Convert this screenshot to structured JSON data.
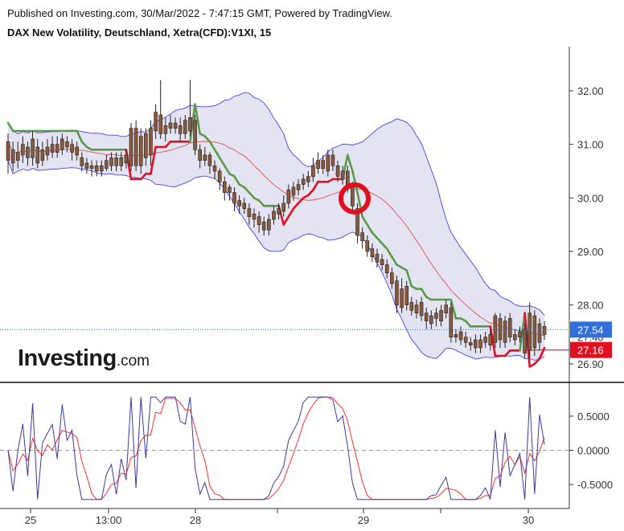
{
  "header": {
    "published": "Published on Investing.com, 30/Mar/2022 - 7:47:15 GMT, Powered by TradingView.",
    "symbol": "DAX New Volatility, Deutschland, Xetra(CFD):V1XI, 15"
  },
  "logo": {
    "name": "Investing",
    "suffix": ".com"
  },
  "colors": {
    "candle_body": "#8b5a3c",
    "candle_wick": "#222222",
    "band_fill": "#e1e1f0",
    "band_line": "#4444ee",
    "mid_line": "#e05050",
    "supertrend_up": "#5a9a4a",
    "supertrend_down": "#e01020",
    "osc_fast": "#3a3aa0",
    "osc_slow": "#ff3030",
    "price_tag_blue": "#2f6fdc",
    "price_tag_red": "#e01020"
  },
  "chart_data": [
    {
      "type": "candlestick",
      "title": "DAX New Volatility, Deutschland, Xetra(CFD):V1XI, 15",
      "x_tick_labels": [
        "25",
        "13:00",
        "28",
        "29",
        "30"
      ],
      "y_tick_labels": [
        "32.00",
        "31.00",
        "30.00",
        "29.00",
        "28.00",
        "26.90"
      ],
      "ylim": [
        26.7,
        32.7
      ],
      "tags": [
        {
          "label": "27.54",
          "value": 27.54,
          "color": "#2f6fdc"
        },
        {
          "label": "27.16",
          "value": 27.16,
          "color": "#e01020"
        }
      ],
      "partially_hidden_label": "27.40",
      "close": [
        31.05,
        30.65,
        30.85,
        31.0,
        30.75,
        31.1,
        30.65,
        30.9,
        30.95,
        31.0,
        30.85,
        31.1,
        30.95,
        31.0,
        30.8,
        30.6,
        30.65,
        30.55,
        30.5,
        30.6,
        30.7,
        30.75,
        30.6,
        30.75,
        30.65,
        31.3,
        30.6,
        31.15,
        30.75,
        31.3,
        31.6,
        31.2,
        31.35,
        31.4,
        31.4,
        31.2,
        31.2,
        31.5,
        30.9,
        30.7,
        30.8,
        30.6,
        30.5,
        30.3,
        30.1,
        30.1,
        29.9,
        29.85,
        29.8,
        29.65,
        29.6,
        29.5,
        29.4,
        29.6,
        29.75,
        29.8,
        29.9,
        30.15,
        30.2,
        30.25,
        30.35,
        30.4,
        30.6,
        30.7,
        30.55,
        30.8,
        30.6,
        30.4,
        30.5,
        30.2,
        29.85,
        29.3,
        29.2,
        29.0,
        28.9,
        28.8,
        28.75,
        28.6,
        28.4,
        28.0,
        28.3,
        28.0,
        27.9,
        28.0,
        27.8,
        27.7,
        27.8,
        27.75,
        27.9,
        28.0,
        27.4,
        27.45,
        27.35,
        27.3,
        27.3,
        27.2,
        27.35,
        27.4,
        27.25,
        27.8,
        27.35,
        27.7,
        27.4,
        27.45,
        27.5,
        27.1,
        27.85,
        27.2,
        27.65,
        27.45
      ],
      "open": [
        30.7,
        30.9,
        30.7,
        30.8,
        30.95,
        30.75,
        30.95,
        30.7,
        30.8,
        30.85,
        31.0,
        30.9,
        31.05,
        30.85,
        30.95,
        30.75,
        30.55,
        30.6,
        30.6,
        30.5,
        30.55,
        30.6,
        30.75,
        30.6,
        30.8,
        30.6,
        31.3,
        30.6,
        31.2,
        30.8,
        31.25,
        31.55,
        31.2,
        31.3,
        31.3,
        31.35,
        31.45,
        31.25,
        31.45,
        30.9,
        30.7,
        30.8,
        30.6,
        30.5,
        30.3,
        30.2,
        30.1,
        29.95,
        29.9,
        29.8,
        29.7,
        29.65,
        29.55,
        29.4,
        29.6,
        29.7,
        29.75,
        29.9,
        30.05,
        30.15,
        30.25,
        30.3,
        30.4,
        30.55,
        30.7,
        30.5,
        30.8,
        30.6,
        30.35,
        30.5,
        30.2,
        29.8,
        29.35,
        29.2,
        29.05,
        28.95,
        28.85,
        28.75,
        28.6,
        28.45,
        27.95,
        28.35,
        28.05,
        27.85,
        28.05,
        27.85,
        27.65,
        27.85,
        27.7,
        27.85,
        27.95,
        27.4,
        27.5,
        27.4,
        27.25,
        27.35,
        27.2,
        27.3,
        27.45,
        27.3,
        27.75,
        27.3,
        27.75,
        27.35,
        27.4,
        27.55,
        27.15,
        27.8,
        27.3,
        27.6
      ],
      "high": [
        31.2,
        31.05,
        31.05,
        31.15,
        31.05,
        31.25,
        31.1,
        31.05,
        31.1,
        31.15,
        31.15,
        31.2,
        31.15,
        31.1,
        31.05,
        30.85,
        30.75,
        30.7,
        30.7,
        30.7,
        30.8,
        30.85,
        30.85,
        30.85,
        30.9,
        31.4,
        31.45,
        31.3,
        31.3,
        31.45,
        31.75,
        32.2,
        31.5,
        31.55,
        31.5,
        31.5,
        31.55,
        32.2,
        31.55,
        31.0,
        30.95,
        30.85,
        30.7,
        30.55,
        30.4,
        30.25,
        30.2,
        30.05,
        30.0,
        29.9,
        29.8,
        29.75,
        29.65,
        29.7,
        29.85,
        29.9,
        30.05,
        30.25,
        30.3,
        30.35,
        30.45,
        30.5,
        30.75,
        30.85,
        30.8,
        30.9,
        30.9,
        30.7,
        30.6,
        30.6,
        30.3,
        29.9,
        29.45,
        29.3,
        29.15,
        29.05,
        28.95,
        28.85,
        28.7,
        28.55,
        28.5,
        28.45,
        28.15,
        28.1,
        28.15,
        27.95,
        27.9,
        27.95,
        28.0,
        28.1,
        28.05,
        27.55,
        27.6,
        27.5,
        27.4,
        27.45,
        27.45,
        27.5,
        27.55,
        27.85,
        27.85,
        27.8,
        27.85,
        27.55,
        27.6,
        27.65,
        28.05,
        27.9,
        27.75,
        27.7
      ],
      "low": [
        30.45,
        30.5,
        30.55,
        30.65,
        30.6,
        30.6,
        30.55,
        30.6,
        30.7,
        30.75,
        30.75,
        30.8,
        30.85,
        30.7,
        30.7,
        30.5,
        30.45,
        30.4,
        30.4,
        30.4,
        30.5,
        30.5,
        30.5,
        30.5,
        30.55,
        30.5,
        30.5,
        30.45,
        30.6,
        30.6,
        31.1,
        31.1,
        31.05,
        31.2,
        31.2,
        31.05,
        31.1,
        31.15,
        30.8,
        30.55,
        30.6,
        30.45,
        30.35,
        30.15,
        29.95,
        29.95,
        29.75,
        29.7,
        29.7,
        29.5,
        29.45,
        29.35,
        29.3,
        29.3,
        29.5,
        29.6,
        29.65,
        29.8,
        29.95,
        30.05,
        30.15,
        30.2,
        30.3,
        30.45,
        30.45,
        30.4,
        30.5,
        30.3,
        30.25,
        30.1,
        29.75,
        29.15,
        29.05,
        28.9,
        28.8,
        28.7,
        28.65,
        28.5,
        28.3,
        27.85,
        27.85,
        27.9,
        27.8,
        27.75,
        27.7,
        27.55,
        27.55,
        27.6,
        27.6,
        27.75,
        27.3,
        27.3,
        27.25,
        27.2,
        27.15,
        27.1,
        27.1,
        27.2,
        27.15,
        27.2,
        27.2,
        27.2,
        27.3,
        27.25,
        27.3,
        27.0,
        27.0,
        27.05,
        27.15,
        27.35
      ],
      "oscillator": {
        "y_tick_labels": [
          "0.5000",
          "0.0000",
          "-0.5000"
        ],
        "ylim": [
          -0.85,
          0.95
        ]
      }
    }
  ]
}
